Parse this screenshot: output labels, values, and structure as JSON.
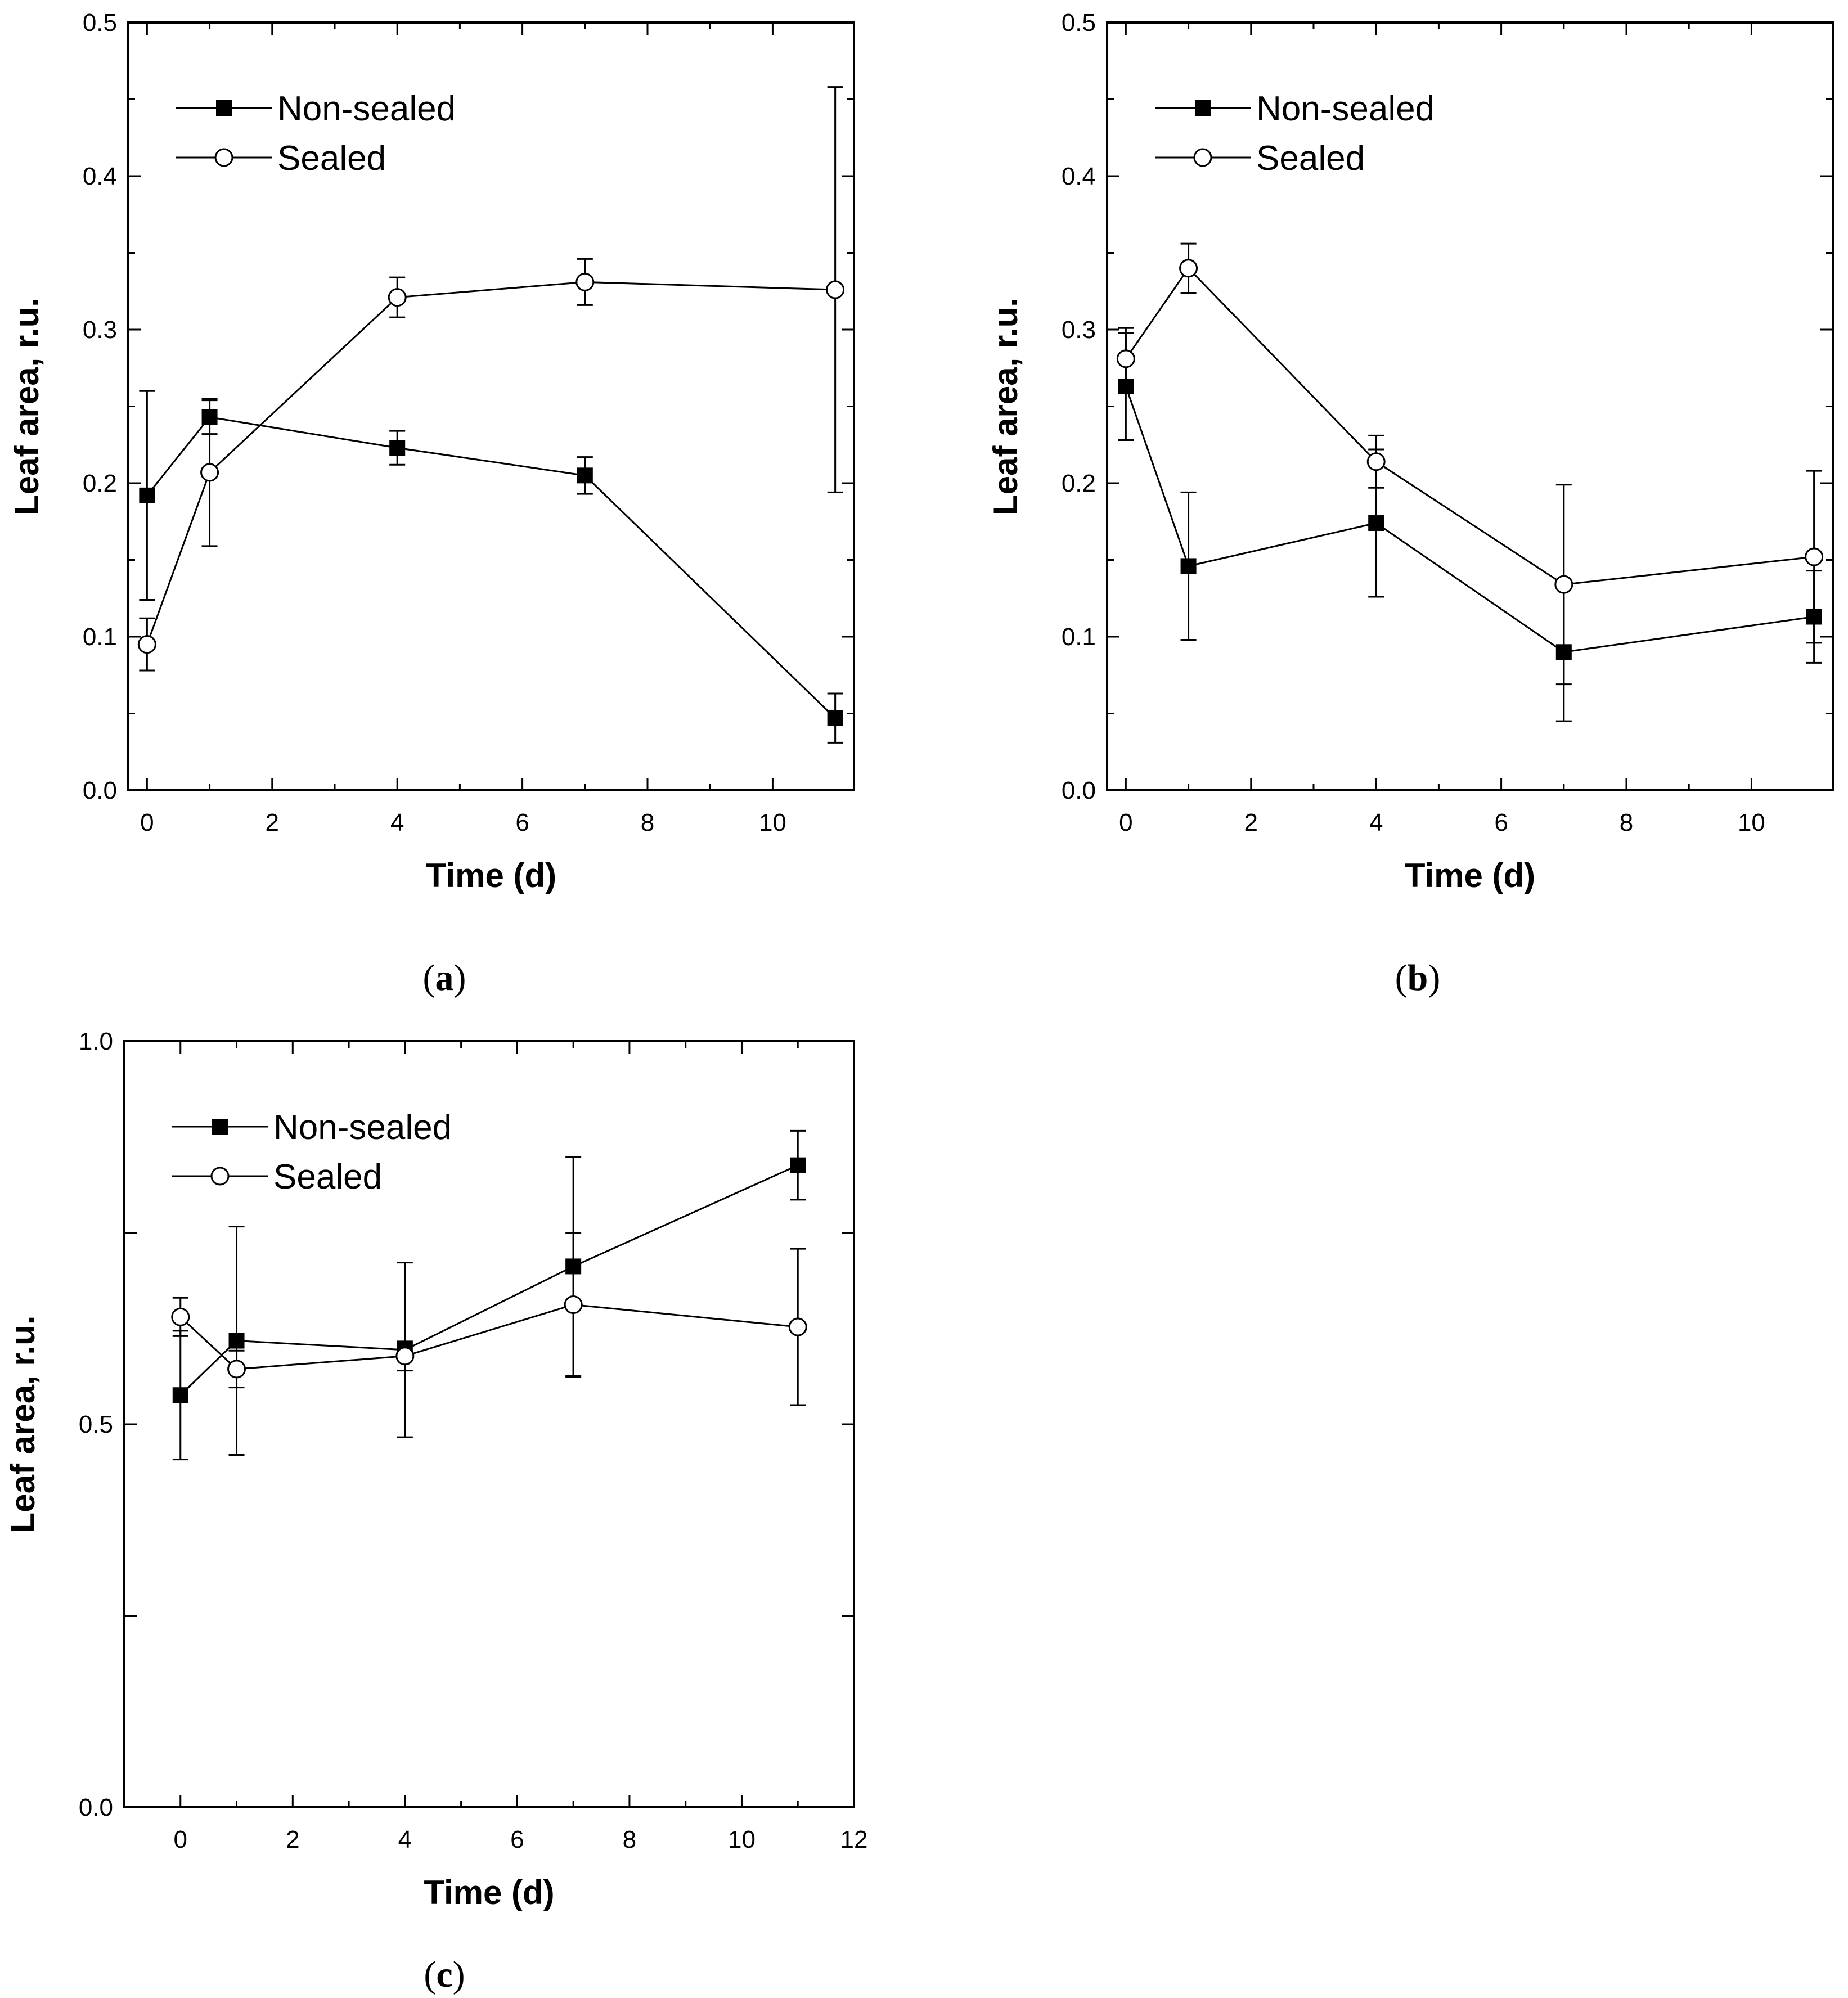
{
  "chart_data": [
    {
      "type": "line",
      "panel": "a",
      "xlabel": "Time (d)",
      "ylabel": "Leaf area, r.u.",
      "xlim": [
        -0.3,
        11.3
      ],
      "ylim": [
        0,
        0.5
      ],
      "xticks": [
        0,
        2,
        4,
        6,
        8,
        10
      ],
      "xtick_labels": [
        "0",
        "2",
        "4",
        "6",
        "8",
        "10"
      ],
      "yticks": [
        0,
        0.1,
        0.2,
        0.3,
        0.4,
        0.5
      ],
      "ytick_labels": [
        "0.0",
        "0.1",
        "0.2",
        "0.3",
        "0.4",
        "0.5"
      ],
      "legend": "top-left",
      "series": [
        {
          "name": "Non-sealed",
          "marker": "filled-square",
          "x": [
            0,
            1,
            4,
            7,
            11
          ],
          "y": [
            0.192,
            0.243,
            0.223,
            0.205,
            0.047
          ],
          "err": [
            0.068,
            0.011,
            0.011,
            0.012,
            0.016
          ]
        },
        {
          "name": "Sealed",
          "marker": "open-circle",
          "x": [
            0,
            1,
            4,
            7,
            11
          ],
          "y": [
            0.095,
            0.207,
            0.321,
            0.331,
            0.326
          ],
          "err": [
            0.017,
            0.048,
            0.013,
            0.015,
            0.132
          ]
        }
      ]
    },
    {
      "type": "line",
      "panel": "b",
      "xlabel": "Time (d)",
      "ylabel": "Leaf area, r.u.",
      "xlim": [
        -0.3,
        11.3
      ],
      "ylim": [
        0,
        0.5
      ],
      "xticks": [
        0,
        2,
        4,
        6,
        8,
        10
      ],
      "xtick_labels": [
        "0",
        "2",
        "4",
        "6",
        "8",
        "10"
      ],
      "yticks": [
        0,
        0.1,
        0.2,
        0.3,
        0.4,
        0.5
      ],
      "ytick_labels": [
        "0.0",
        "0.1",
        "0.2",
        "0.3",
        "0.4",
        "0.5"
      ],
      "legend": "top-left",
      "series": [
        {
          "name": "Non-sealed",
          "marker": "filled-square",
          "x": [
            0,
            1,
            4,
            7,
            11
          ],
          "y": [
            0.263,
            0.146,
            0.174,
            0.09,
            0.113
          ],
          "err": [
            0.035,
            0.048,
            0.048,
            0.045,
            0.03
          ]
        },
        {
          "name": "Sealed",
          "marker": "open-circle",
          "x": [
            0,
            1,
            4,
            7,
            11
          ],
          "y": [
            0.281,
            0.34,
            0.214,
            0.134,
            0.152
          ],
          "err": [
            0.02,
            0.016,
            0.017,
            0.065,
            0.056
          ]
        }
      ]
    },
    {
      "type": "line",
      "panel": "c",
      "xlabel": "Time (d)",
      "ylabel": "Leaf area, r.u.",
      "xlim": [
        -1,
        12
      ],
      "ylim": [
        0,
        1.0
      ],
      "xticks": [
        0,
        2,
        4,
        6,
        8,
        10,
        12
      ],
      "xtick_labels": [
        "0",
        "2",
        "4",
        "6",
        "8",
        "10",
        "12"
      ],
      "yticks": [
        0,
        0.5,
        1.0
      ],
      "ytick_labels": [
        "0.0",
        "0.5",
        "1.0"
      ],
      "ytick_minor": [
        0.25,
        0.75
      ],
      "legend": "top-left",
      "series": [
        {
          "name": "Non-sealed",
          "marker": "filled-square",
          "x": [
            0,
            1,
            4,
            7,
            11
          ],
          "y": [
            0.538,
            0.609,
            0.597,
            0.706,
            0.838
          ],
          "err": [
            0.084,
            0.149,
            0.114,
            0.143,
            0.045
          ]
        },
        {
          "name": "Sealed",
          "marker": "open-circle",
          "x": [
            0,
            1,
            4,
            7,
            11
          ],
          "y": [
            0.64,
            0.572,
            0.589,
            0.656,
            0.627
          ],
          "err": [
            0.025,
            0.024,
            0.019,
            0.094,
            0.102
          ]
        }
      ]
    }
  ],
  "panel_labels": [
    "a",
    "b",
    "c"
  ]
}
